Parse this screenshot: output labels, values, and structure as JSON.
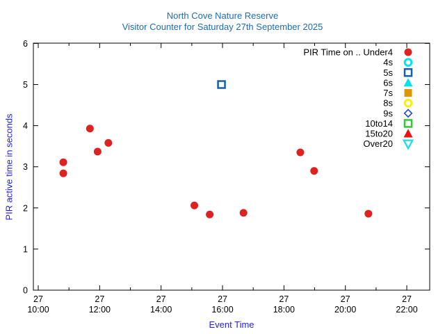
{
  "title": {
    "line1": "North Cove Nature Reserve",
    "line2": "Visitor Counter for Saturday 27th September 2025"
  },
  "axes": {
    "x": {
      "label": "Event Time",
      "day_label": "27",
      "major_ticks": [
        "10:00",
        "12:00",
        "14:00",
        "16:00",
        "18:00",
        "20:00",
        "22:00"
      ],
      "major_hours": [
        10,
        12,
        14,
        16,
        18,
        20,
        22
      ],
      "minor_hours": [
        11,
        13,
        15,
        17,
        19,
        21
      ]
    },
    "y": {
      "label": "PIR active time in seconds",
      "ticks": [
        "0",
        "1",
        "2",
        "3",
        "4",
        "5",
        "6"
      ],
      "range": [
        0,
        6
      ]
    }
  },
  "colors": {
    "title_text": "#1c6db2",
    "axis_label_text": "#2222dd",
    "axis_line": "#000000",
    "background": "#ffffff"
  },
  "chart_data": {
    "type": "scatter",
    "title": "North Cove Nature Reserve - Visitor Counter for Saturday 27th September 2025",
    "xlabel": "Event Time",
    "ylabel": "PIR active time in seconds",
    "ylim": [
      0,
      6
    ],
    "x_axis_date": "27",
    "x_tick_times": [
      "10:00",
      "12:00",
      "14:00",
      "16:00",
      "18:00",
      "20:00",
      "22:00"
    ],
    "grid": false,
    "legend_position": "top-right-inside",
    "series": [
      {
        "name": "PIR Time on .. Under4",
        "marker": "filled-circle",
        "color": "#dd2222",
        "points": [
          {
            "time": "10:49",
            "hour": 10.817,
            "seconds": 3.11
          },
          {
            "time": "10:49",
            "hour": 10.817,
            "seconds": 2.84
          },
          {
            "time": "11:41",
            "hour": 11.683,
            "seconds": 3.93
          },
          {
            "time": "11:56",
            "hour": 11.933,
            "seconds": 3.37
          },
          {
            "time": "12:17",
            "hour": 12.283,
            "seconds": 3.58
          },
          {
            "time": "15:05",
            "hour": 15.083,
            "seconds": 2.06
          },
          {
            "time": "15:35",
            "hour": 15.583,
            "seconds": 1.84
          },
          {
            "time": "16:41",
            "hour": 16.683,
            "seconds": 1.88
          },
          {
            "time": "18:32",
            "hour": 18.533,
            "seconds": 3.35
          },
          {
            "time": "18:59",
            "hour": 18.983,
            "seconds": 2.9
          },
          {
            "time": "20:45",
            "hour": 20.75,
            "seconds": 1.86
          }
        ]
      },
      {
        "name": "4s",
        "marker": "open-circle",
        "color": "#00e4ee",
        "points": []
      },
      {
        "name": "5s",
        "marker": "open-square",
        "color": "#1560a8",
        "points": [
          {
            "time": "15:58",
            "hour": 15.967,
            "seconds": 5.0
          }
        ]
      },
      {
        "name": "6s",
        "marker": "filled-triangle-up",
        "color": "#00e4ee",
        "points": []
      },
      {
        "name": "7s",
        "marker": "filled-square",
        "color": "#dd9700",
        "points": []
      },
      {
        "name": "8s",
        "marker": "open-circle",
        "color": "#ffee00",
        "points": []
      },
      {
        "name": "9s",
        "marker": "open-diamond",
        "color": "#2244cc",
        "points": []
      },
      {
        "name": "10to14",
        "marker": "open-square",
        "color": "#2dcc2d",
        "points": []
      },
      {
        "name": "15to20",
        "marker": "filled-triangle-up",
        "color": "#ee1111",
        "points": []
      },
      {
        "name": "Over20",
        "marker": "open-triangle-down",
        "color": "#22dde4",
        "points": []
      }
    ]
  }
}
